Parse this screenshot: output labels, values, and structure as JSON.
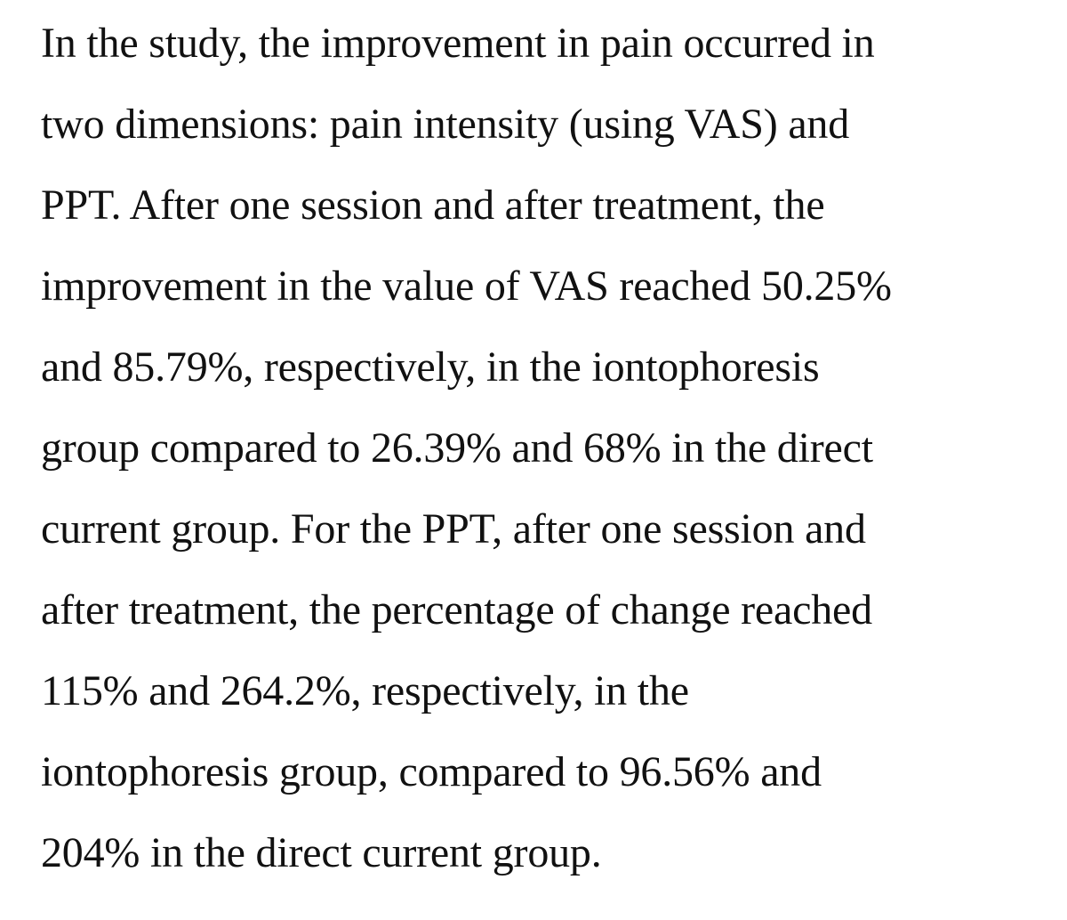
{
  "document": {
    "lines": [
      "In the study, the improvement in pain occurred in",
      "two dimensions: pain intensity (using VAS) and",
      "PPT. After one session and after treatment, the",
      "improvement in the value of VAS reached 50.25%",
      "and 85.79%, respectively, in the iontophoresis",
      "group compared to 26.39% and 68% in the direct",
      "current group. For the PPT, after one session and",
      "after treatment, the percentage of change reached",
      "115% and 264.2%, respectively, in the",
      "iontophoresis group, compared to 96.56% and",
      "204% in the direct current group."
    ]
  }
}
